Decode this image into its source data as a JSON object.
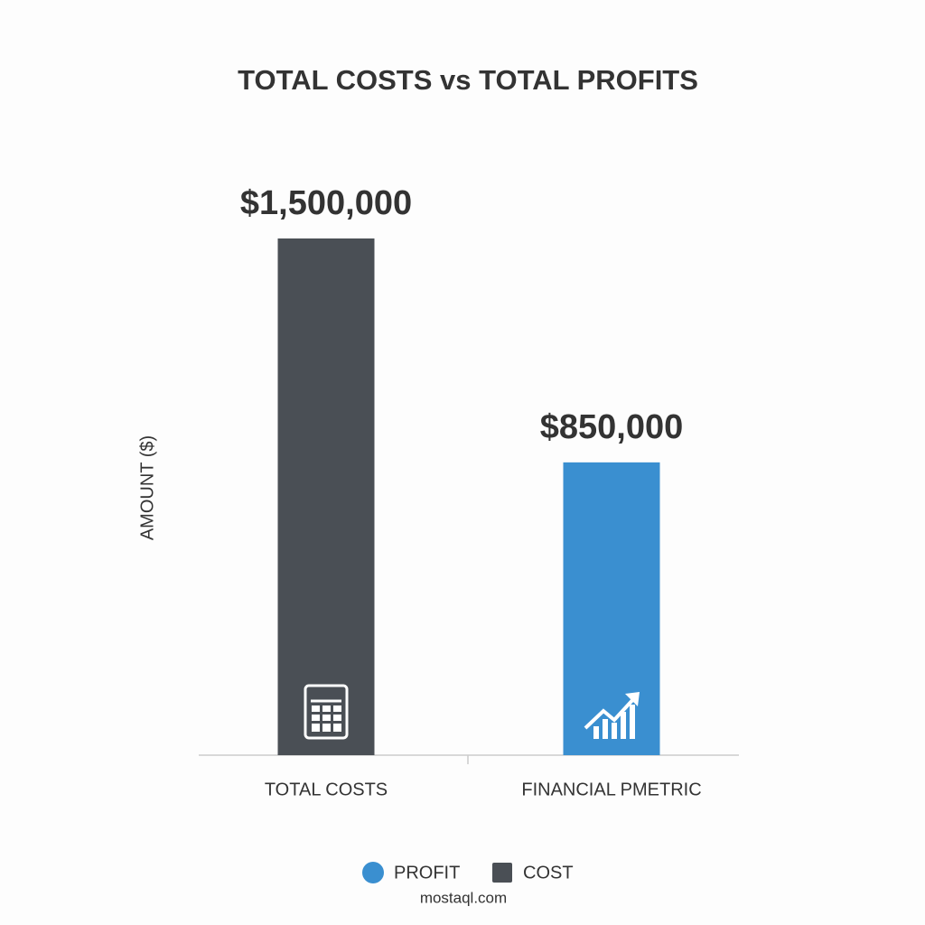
{
  "chart_data": {
    "type": "bar",
    "title": "TOTAL COSTS vs TOTAL PROFITS",
    "y_label": "AMOUNT ($)",
    "categories": [
      "TOTAL COSTS",
      "FINANCIAL PMETRIC"
    ],
    "values": [
      1500000,
      850000
    ],
    "value_labels": [
      "$1,500,000",
      "$850,000"
    ],
    "colors": [
      "#4a4f55",
      "#3a8fd0"
    ],
    "legend": [
      {
        "name": "PROFIT",
        "color": "#3a8fd0"
      },
      {
        "name": "COST",
        "color": "#4a4f55"
      }
    ],
    "watermark": "mostaql.com"
  }
}
